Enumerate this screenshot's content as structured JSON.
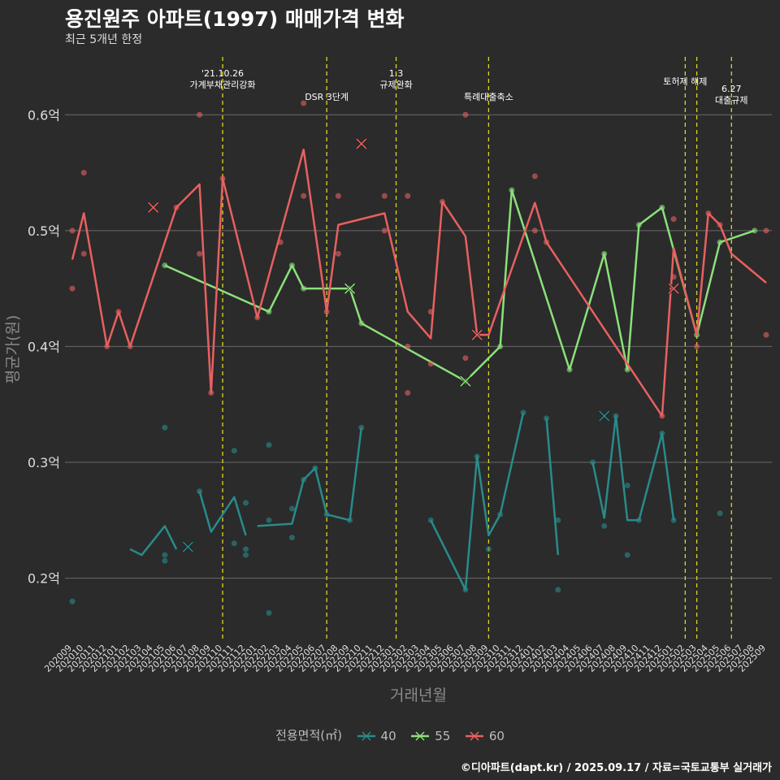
{
  "header": {
    "title": "용진원주 아파트(1997) 매매가격 변화",
    "subtitle": "최근 5개년 한정"
  },
  "caption": "©디아파트(dapt.kr) / 2025.09.17 / 자료=국토교통부 실거래가",
  "legend": {
    "title": "전용면적(㎡)",
    "items": [
      {
        "label": "40",
        "color": "#2a8a8a"
      },
      {
        "label": "55",
        "color": "#8be07a"
      },
      {
        "label": "60",
        "color": "#e86060"
      }
    ]
  },
  "chart_data": {
    "type": "line",
    "title": "용진원주 아파트(1997) 매매가격 변화",
    "subtitle": "최근 5개년 한정",
    "xlabel": "거래년월",
    "ylabel": "평균가(원)",
    "ylim": [
      0.145,
      0.65
    ],
    "yticks": [
      0.2,
      0.3,
      0.4,
      0.5,
      0.6
    ],
    "ytick_labels": [
      "0.2억",
      "0.3억",
      "0.4억",
      "0.5억",
      "0.6억"
    ],
    "grid": true,
    "legend_position": "bottom",
    "x_categories": [
      "202009",
      "202010",
      "202011",
      "202012",
      "202101",
      "202102",
      "202103",
      "202104",
      "202105",
      "202106",
      "202107",
      "202108",
      "202109",
      "202110",
      "202111",
      "202112",
      "202201",
      "202202",
      "202203",
      "202204",
      "202205",
      "202206",
      "202207",
      "202208",
      "202209",
      "202210",
      "202211",
      "202212",
      "202301",
      "202302",
      "202303",
      "202304",
      "202305",
      "202306",
      "202307",
      "202308",
      "202309",
      "202310",
      "202311",
      "202312",
      "202401",
      "202402",
      "202403",
      "202404",
      "202405",
      "202406",
      "202407",
      "202408",
      "202409",
      "202410",
      "202411",
      "202412",
      "202501",
      "202502",
      "202503",
      "202504",
      "202505",
      "202506",
      "202507",
      "202508",
      "202509"
    ],
    "events": [
      {
        "x": 13,
        "label": "'21.10.26\n가계부채관리강화",
        "row": 0
      },
      {
        "x": 22,
        "label": "DSR 3단계",
        "row": 1
      },
      {
        "x": 28,
        "label": "1.3\n규제완화",
        "row": 0
      },
      {
        "x": 36,
        "label": "특례대출축소",
        "row": 1
      },
      {
        "x": 53,
        "label": "토허제 해제",
        "row": 0
      },
      {
        "x": 54,
        "label": "",
        "row": 0
      },
      {
        "x": 57,
        "label": "6.27\n대출규제",
        "row": 1
      }
    ],
    "series": [
      {
        "name": "40",
        "color": "#2a8a8a",
        "line": [
          [
            5,
            0.225
          ],
          [
            6,
            0.22
          ],
          [
            8,
            0.245
          ],
          [
            9,
            0.225
          ],
          null,
          [
            10,
            0.227
          ],
          null,
          [
            11,
            0.275
          ],
          [
            12,
            0.24
          ],
          [
            14,
            0.27
          ],
          [
            15,
            0.237
          ],
          null,
          [
            16,
            0.245
          ],
          [
            19,
            0.247
          ],
          [
            20,
            0.285
          ],
          [
            21,
            0.295
          ],
          [
            22,
            0.255
          ],
          [
            24,
            0.25
          ],
          [
            25,
            0.33
          ],
          null,
          [
            31,
            0.25
          ],
          [
            34,
            0.19
          ],
          [
            35,
            0.305
          ],
          [
            36,
            0.237
          ],
          [
            37,
            0.255
          ],
          [
            39,
            0.343
          ],
          null,
          [
            41,
            0.338
          ],
          [
            42,
            0.22
          ],
          null,
          [
            45,
            0.3
          ],
          [
            46,
            0.252
          ],
          [
            47,
            0.34
          ],
          [
            48,
            0.25
          ],
          [
            49,
            0.25
          ],
          [
            51,
            0.325
          ],
          [
            52,
            0.25
          ]
        ],
        "points": [
          [
            0,
            0.18
          ],
          [
            8,
            0.33
          ],
          [
            8,
            0.215
          ],
          [
            8,
            0.22
          ],
          [
            11,
            0.275
          ],
          [
            14,
            0.31
          ],
          [
            14,
            0.23
          ],
          [
            15,
            0.265
          ],
          [
            15,
            0.225
          ],
          [
            15,
            0.22
          ],
          [
            17,
            0.315
          ],
          [
            17,
            0.25
          ],
          [
            17,
            0.17
          ],
          [
            19,
            0.26
          ],
          [
            19,
            0.235
          ],
          [
            20,
            0.285
          ],
          [
            21,
            0.295
          ],
          [
            22,
            0.255
          ],
          [
            24,
            0.25
          ],
          [
            25,
            0.33
          ],
          [
            31,
            0.25
          ],
          [
            34,
            0.19
          ],
          [
            35,
            0.305
          ],
          [
            36,
            0.225
          ],
          [
            37,
            0.255
          ],
          [
            39,
            0.343
          ],
          [
            41,
            0.338
          ],
          [
            42,
            0.25
          ],
          [
            42,
            0.19
          ],
          [
            45,
            0.3
          ],
          [
            46,
            0.245
          ],
          [
            47,
            0.34
          ],
          [
            48,
            0.28
          ],
          [
            48,
            0.22
          ],
          [
            49,
            0.25
          ],
          [
            51,
            0.325
          ],
          [
            52,
            0.25
          ],
          [
            56,
            0.256
          ]
        ],
        "crosses": [
          [
            10,
            0.227
          ],
          [
            46,
            0.34
          ]
        ]
      },
      {
        "name": "55",
        "color": "#8be07a",
        "line": [
          [
            8,
            0.47
          ],
          [
            17,
            0.43
          ],
          [
            19,
            0.47
          ],
          [
            20,
            0.45
          ],
          [
            23,
            0.45
          ],
          [
            24,
            0.45
          ],
          [
            25,
            0.42
          ],
          [
            34,
            0.37
          ],
          [
            37,
            0.4
          ],
          [
            38,
            0.535
          ],
          [
            43,
            0.38
          ],
          [
            46,
            0.48
          ],
          [
            48,
            0.38
          ],
          [
            49,
            0.505
          ],
          [
            51,
            0.52
          ],
          [
            54,
            0.41
          ],
          [
            56,
            0.49
          ],
          [
            59,
            0.5
          ]
        ],
        "points": [
          [
            8,
            0.47
          ],
          [
            17,
            0.43
          ],
          [
            19,
            0.47
          ],
          [
            20,
            0.45
          ],
          [
            24,
            0.45
          ],
          [
            25,
            0.42
          ],
          [
            34,
            0.37
          ],
          [
            37,
            0.4
          ],
          [
            38,
            0.535
          ],
          [
            43,
            0.38
          ],
          [
            46,
            0.48
          ],
          [
            48,
            0.38
          ],
          [
            49,
            0.505
          ],
          [
            51,
            0.52
          ],
          [
            54,
            0.41
          ],
          [
            56,
            0.49
          ],
          [
            59,
            0.5
          ]
        ],
        "crosses": [
          [
            24,
            0.45
          ],
          [
            34,
            0.37
          ]
        ]
      },
      {
        "name": "60",
        "color": "#e86060",
        "line": [
          [
            0,
            0.475
          ],
          [
            1,
            0.515
          ],
          [
            3,
            0.4
          ],
          [
            4,
            0.43
          ],
          [
            5,
            0.4
          ],
          [
            9,
            0.52
          ],
          [
            11,
            0.54
          ],
          [
            12,
            0.36
          ],
          [
            13,
            0.545
          ],
          [
            16,
            0.425
          ],
          [
            20,
            0.57
          ],
          [
            22,
            0.43
          ],
          [
            23,
            0.505
          ],
          [
            27,
            0.515
          ],
          [
            29,
            0.43
          ],
          [
            31,
            0.407
          ],
          [
            32,
            0.525
          ],
          [
            34,
            0.495
          ],
          [
            35,
            0.41
          ],
          [
            36,
            0.41
          ],
          [
            40,
            0.524
          ],
          [
            41,
            0.49
          ],
          [
            51,
            0.34
          ],
          [
            52,
            0.485
          ],
          [
            54,
            0.41
          ],
          [
            55,
            0.515
          ],
          [
            56,
            0.505
          ],
          [
            57,
            0.48
          ],
          [
            60,
            0.455
          ]
        ],
        "points": [
          [
            0,
            0.5
          ],
          [
            0,
            0.45
          ],
          [
            1,
            0.55
          ],
          [
            1,
            0.48
          ],
          [
            3,
            0.4
          ],
          [
            4,
            0.43
          ],
          [
            5,
            0.4
          ],
          [
            9,
            0.52
          ],
          [
            11,
            0.6
          ],
          [
            11,
            0.48
          ],
          [
            12,
            0.36
          ],
          [
            13,
            0.545
          ],
          [
            16,
            0.425
          ],
          [
            18,
            0.49
          ],
          [
            20,
            0.61
          ],
          [
            20,
            0.53
          ],
          [
            22,
            0.43
          ],
          [
            23,
            0.53
          ],
          [
            23,
            0.48
          ],
          [
            27,
            0.53
          ],
          [
            27,
            0.5
          ],
          [
            29,
            0.53
          ],
          [
            29,
            0.4
          ],
          [
            29,
            0.36
          ],
          [
            31,
            0.43
          ],
          [
            31,
            0.385
          ],
          [
            32,
            0.525
          ],
          [
            34,
            0.6
          ],
          [
            34,
            0.39
          ],
          [
            40,
            0.547
          ],
          [
            40,
            0.5
          ],
          [
            41,
            0.49
          ],
          [
            51,
            0.34
          ],
          [
            52,
            0.51
          ],
          [
            52,
            0.46
          ],
          [
            54,
            0.4
          ],
          [
            55,
            0.515
          ],
          [
            56,
            0.505
          ],
          [
            60,
            0.5
          ],
          [
            60,
            0.41
          ]
        ],
        "crosses": [
          [
            7,
            0.52
          ],
          [
            25,
            0.575
          ],
          [
            35,
            0.41
          ],
          [
            52,
            0.45
          ]
        ]
      }
    ]
  }
}
